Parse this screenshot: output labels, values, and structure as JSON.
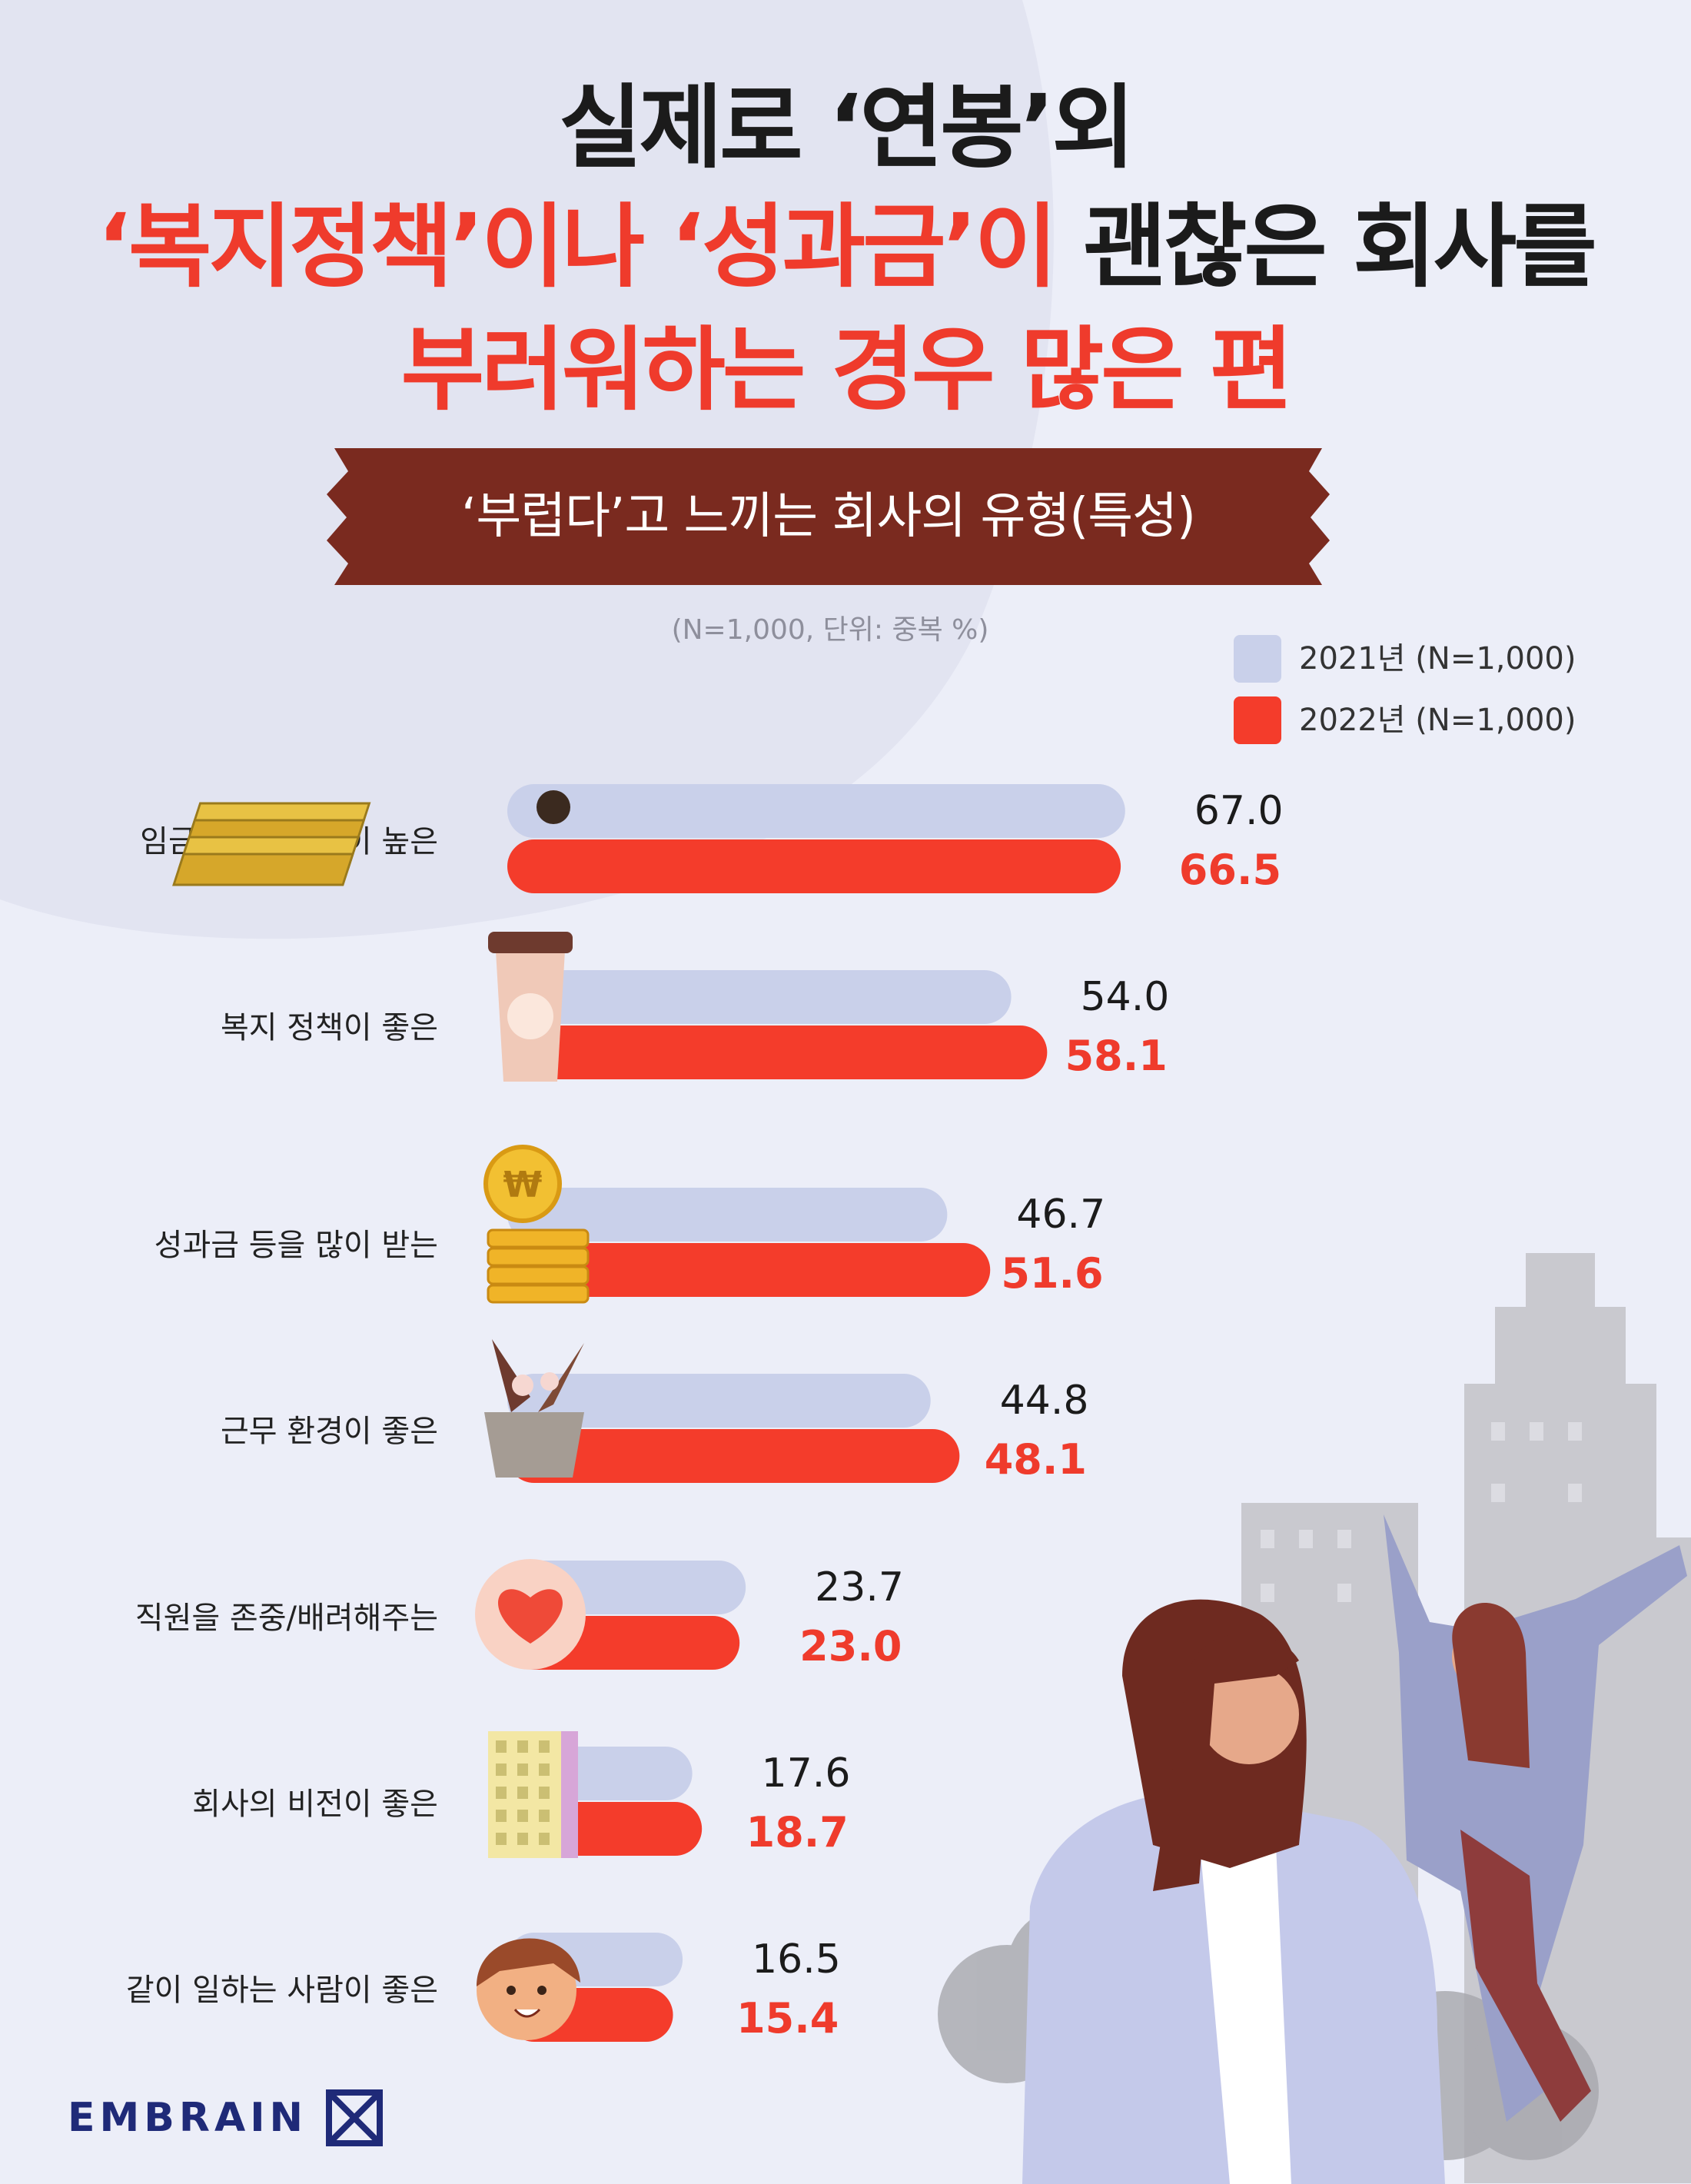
{
  "title": {
    "line1": "실제로 ‘연봉’외",
    "line2_highlight": "‘복지정책’이나 ‘성과금’이",
    "line2_rest": " 괜찮은 회사를",
    "line3": "부러워하는 경우 많은 편"
  },
  "banner": "‘부럽다’고 느끼는 회사의 유형(특성)",
  "unit_note": "(N=1,000, 단위: 중복 %)",
  "legend": [
    {
      "label": "2021년 (N=1,000)",
      "color": "#c9d0ea"
    },
    {
      "label": "2022년 (N=1,000)",
      "color": "#f43c2b"
    }
  ],
  "chart_data": {
    "type": "bar",
    "orientation": "horizontal",
    "categories": [
      "임금(연봉 수준)이 높은",
      "복지 정책이 좋은",
      "성과금 등을 많이 받는",
      "근무 환경이 좋은",
      "직원을 존중/배려해주는",
      "회사의 비전이 좋은",
      "같이 일하는 사람이 좋은"
    ],
    "series": [
      {
        "name": "2021년 (N=1,000)",
        "values": [
          67.0,
          54.0,
          46.7,
          44.8,
          23.7,
          17.6,
          16.5
        ],
        "labels": [
          "67.0",
          "54.0",
          "46.7",
          "44.8",
          "23.7",
          "17.6",
          "16.5"
        ],
        "color": "#c9d0ea"
      },
      {
        "name": "2022년 (N=1,000)",
        "values": [
          66.5,
          58.1,
          51.6,
          48.1,
          23.0,
          18.7,
          15.4
        ],
        "labels": [
          "66.5",
          "58.1",
          "51.6",
          "48.1",
          "23.0",
          "18.7",
          "15.4"
        ],
        "color": "#f43c2b"
      }
    ],
    "icons": [
      "money-icon",
      "coffee-cup-icon",
      "coins-icon",
      "plant-icon",
      "heart-icon",
      "building-icon",
      "smiling-person-icon"
    ],
    "legend_position": "top-right"
  },
  "brand": "EMBRAIN"
}
